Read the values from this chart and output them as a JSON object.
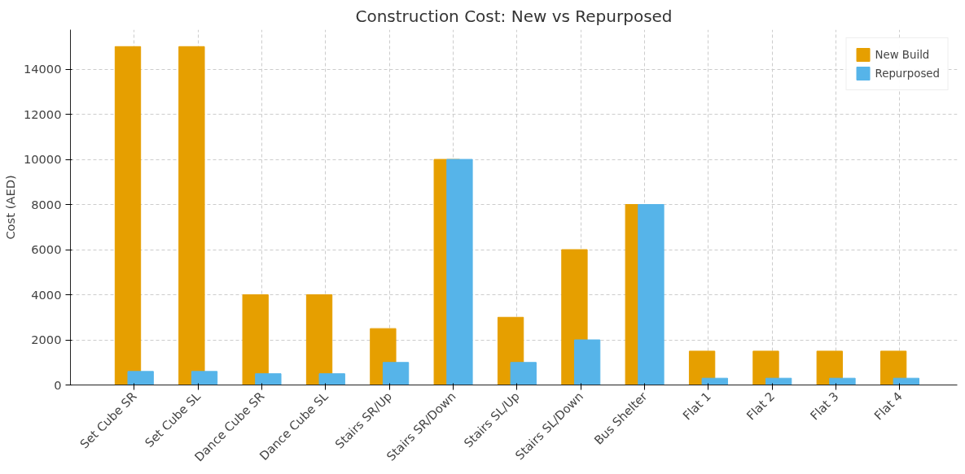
{
  "chart_data": {
    "type": "bar",
    "title": "Construction Cost: New vs Repurposed",
    "ylabel": "Cost (AED)",
    "categories": [
      "Set Cube SR",
      "Set Cube SL",
      "Dance Cube SR",
      "Dance Cube SL",
      "Stairs SR/Up",
      "Stairs SR/Down",
      "Stairs SL/Up",
      "Stairs SL/Down",
      "Bus Shelter",
      "Flat 1",
      "Flat 2",
      "Flat 3",
      "Flat 4"
    ],
    "series": [
      {
        "name": "New Build",
        "color": "#e69f00",
        "values": [
          15000,
          15000,
          4000,
          4000,
          2500,
          10000,
          3000,
          6000,
          8000,
          1500,
          1500,
          1500,
          1500
        ]
      },
      {
        "name": "Repurposed",
        "color": "#56b4e9",
        "values": [
          600,
          600,
          500,
          500,
          1000,
          10000,
          1000,
          2000,
          8000,
          300,
          300,
          300,
          300
        ]
      }
    ],
    "ylim": [
      0,
      15750
    ],
    "yticks": [
      0,
      2000,
      4000,
      6000,
      8000,
      10000,
      12000,
      14000
    ],
    "grid": true,
    "legend": "top right"
  }
}
